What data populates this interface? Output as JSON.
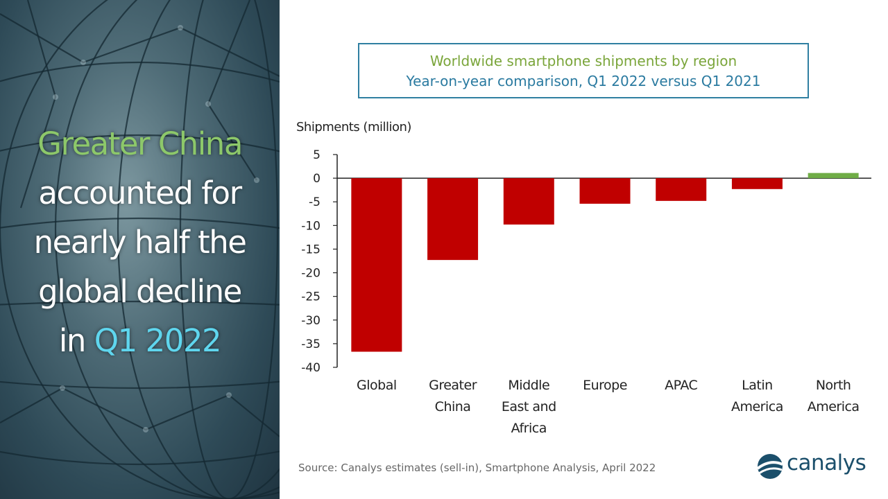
{
  "headline": {
    "part1": "Greater China",
    "part2": "accounted for",
    "part3": "nearly half the",
    "part4": "global decline",
    "part5_prefix": "in",
    "part5_highlight": "Q1 2022"
  },
  "colors": {
    "decline_bar": "#c00000",
    "growth_bar": "#70ad47",
    "headline_green": "#8dc86a",
    "headline_cyan": "#5fd6ee",
    "title_green": "#7aa53a",
    "title_blue": "#2a7aa0"
  },
  "source": "Source:  Canalys estimates (sell-in),  Smartphone  Analysis, April 2022",
  "logo": {
    "text": "canalys",
    "icon": "canalys-logo-icon"
  },
  "chart_data": {
    "type": "bar",
    "title": "Worldwide smartphone shipments by region",
    "subtitle": "Year-on-year comparison, Q1 2022 versus Q1 2021",
    "ylabel": "Shipments (million)",
    "xlabel": "",
    "ylim": [
      -40,
      5
    ],
    "yticks": [
      5,
      0,
      -5,
      -10,
      -15,
      -20,
      -25,
      -30,
      -35,
      -40
    ],
    "categories": [
      [
        "Global"
      ],
      [
        "Greater",
        "China"
      ],
      [
        "Middle",
        "East and",
        "Africa"
      ],
      [
        "Europe"
      ],
      [
        "APAC"
      ],
      [
        "Latin",
        "America"
      ],
      [
        "North",
        "America"
      ]
    ],
    "values": [
      -36.7,
      -17.3,
      -9.8,
      -5.4,
      -4.8,
      -2.3,
      1.1
    ],
    "grid": false,
    "legend": "none"
  }
}
